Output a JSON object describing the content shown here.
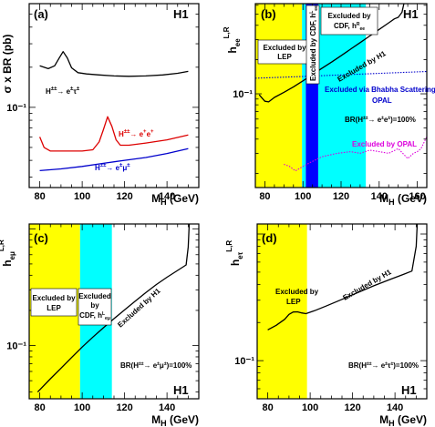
{
  "chart_data": [
    {
      "id": "a",
      "type": "line",
      "panel_label": "(a)",
      "experiment_label": "H1",
      "ylabel": "σ x BR (pb)",
      "xlabel": "M_H (GeV)",
      "xlim": [
        75,
        155
      ],
      "ylim": [
        0.025,
        0.6
      ],
      "yscale": "log",
      "xticks": [
        80,
        100,
        120,
        140
      ],
      "ytick_labels": [
        {
          "value": 0.1,
          "label": "10⁻¹"
        }
      ],
      "series": [
        {
          "name": "H±± → e±τ±",
          "color": "#000000",
          "x": [
            80,
            84,
            87,
            89,
            91,
            93,
            95,
            98,
            102,
            108,
            115,
            122,
            130,
            138,
            145,
            150
          ],
          "y": [
            0.205,
            0.195,
            0.205,
            0.232,
            0.262,
            0.235,
            0.198,
            0.182,
            0.178,
            0.175,
            0.172,
            0.171,
            0.172,
            0.175,
            0.18,
            0.186
          ]
        },
        {
          "name": "H±± → e±e±",
          "color": "#dd0000",
          "x": [
            80,
            82,
            85,
            90,
            95,
            100,
            105,
            108,
            110,
            112,
            114,
            116,
            118,
            122,
            130,
            140,
            150
          ],
          "y": [
            0.06,
            0.05,
            0.047,
            0.047,
            0.047,
            0.047,
            0.048,
            0.055,
            0.068,
            0.085,
            0.072,
            0.057,
            0.052,
            0.052,
            0.054,
            0.057,
            0.062
          ]
        },
        {
          "name": "H±± → e±μ±",
          "color": "#0000cc",
          "x": [
            80,
            90,
            100,
            110,
            120,
            130,
            140,
            150
          ],
          "y": [
            0.0335,
            0.0345,
            0.036,
            0.038,
            0.04,
            0.042,
            0.045,
            0.049
          ]
        }
      ]
    },
    {
      "id": "b",
      "type": "line",
      "panel_label": "(b)",
      "experiment_label": "H1",
      "ylabel": "h_ee^L,R",
      "xlabel": "M_H (GeV)",
      "xlim": [
        75,
        165
      ],
      "ylim": [
        0.015,
        0.62
      ],
      "yscale": "log",
      "xticks": [
        80,
        100,
        120,
        140,
        160
      ],
      "ytick_labels": [
        {
          "value": 0.1,
          "label": "10⁻¹"
        }
      ],
      "bands": [
        {
          "x0": 75,
          "x1": 99.5,
          "color": "#ffff00",
          "label": "Excluded by LEP"
        },
        {
          "x0": 99.5,
          "x1": 101.5,
          "color": "#00ffff"
        },
        {
          "x0": 101.5,
          "x1": 108,
          "color": "#0000ff",
          "label": "Excluded by CDF, h^L_ee"
        },
        {
          "x0": 108,
          "x1": 133,
          "color": "#00ffff",
          "label": "Excluded by CDF, h^R_ee"
        }
      ],
      "series": [
        {
          "name": "Excluded by H1",
          "color": "#000000",
          "x": [
            77,
            80,
            82,
            85,
            90,
            95,
            100,
            105,
            110,
            115,
            120,
            125,
            130,
            135,
            140,
            145,
            148,
            150,
            152,
            153
          ],
          "y": [
            0.098,
            0.086,
            0.085,
            0.093,
            0.103,
            0.115,
            0.13,
            0.148,
            0.168,
            0.19,
            0.216,
            0.247,
            0.282,
            0.322,
            0.368,
            0.42,
            0.456,
            0.47,
            0.52,
            0.62
          ]
        },
        {
          "name": "Excluded via Bhabha Scattering",
          "color": "#0000cc",
          "style": "dotted",
          "x": [
            75,
            100,
            130,
            165
          ],
          "y": [
            0.137,
            0.142,
            0.149,
            0.157
          ]
        },
        {
          "name": "Excluded by OPAL",
          "color": "#dd00dd",
          "style": "dotted",
          "x": [
            90,
            93,
            96,
            100,
            104,
            110,
            118,
            125,
            130,
            135,
            140,
            145,
            150,
            155,
            158,
            160,
            162,
            165
          ],
          "y": [
            0.024,
            0.023,
            0.021,
            0.023,
            0.025,
            0.028,
            0.03,
            0.031,
            0.03,
            0.032,
            0.031,
            0.03,
            0.033,
            0.027,
            0.03,
            0.031,
            0.033,
            0.042
          ]
        }
      ],
      "annotations": [
        {
          "text": "Excluded by",
          "text2": "LEP"
        },
        {
          "text": "Excluded by CDF, h^L_ee"
        },
        {
          "text": "Excluded by",
          "text2": "CDF, h^R_ee"
        },
        {
          "text": "Excluded by H1"
        },
        {
          "text": "Excluded via Bhabha Scattering"
        },
        {
          "text": "OPAL"
        },
        {
          "text": "BR(H±± → e±e±)=100%"
        },
        {
          "text": "Excluded by OPAL"
        }
      ]
    },
    {
      "id": "c",
      "type": "line",
      "panel_label": "(c)",
      "experiment_label": "H1",
      "ylabel": "h_eμ^L,R",
      "xlabel": "M_H (GeV)",
      "xlim": [
        75,
        155
      ],
      "ylim": [
        0.035,
        1.1
      ],
      "yscale": "log",
      "xticks": [
        80,
        100,
        120,
        140
      ],
      "ytick_labels": [
        {
          "value": 0.1,
          "label": "10⁻¹"
        }
      ],
      "bands": [
        {
          "x0": 75,
          "x1": 99,
          "color": "#ffff00",
          "label": "Excluded by LEP"
        },
        {
          "x0": 99,
          "x1": 114,
          "color": "#00ffff",
          "label": "Excluded by CDF, h^L_eμ"
        }
      ],
      "series": [
        {
          "name": "Excluded by H1",
          "color": "#000000",
          "x": [
            79,
            85,
            90,
            95,
            100,
            105,
            110,
            115,
            120,
            125,
            130,
            135,
            140,
            145,
            149,
            150,
            150.5
          ],
          "y": [
            0.04,
            0.052,
            0.064,
            0.079,
            0.097,
            0.118,
            0.142,
            0.17,
            0.202,
            0.24,
            0.284,
            0.333,
            0.385,
            0.44,
            0.49,
            0.7,
            1.1
          ]
        }
      ],
      "annotations": [
        {
          "text": "Excluded by",
          "text2": "LEP"
        },
        {
          "text": "Excluded",
          "text2": "by",
          "text3": "CDF, h^L_eμ"
        },
        {
          "text": "Excluded by H1"
        },
        {
          "text": "BR(H±± → e±μ±)=100%"
        }
      ]
    },
    {
      "id": "d",
      "type": "line",
      "panel_label": "(d)",
      "experiment_label": "H1",
      "ylabel": "h_eτ^L,R",
      "xlabel": "M_H (GeV)",
      "xlim": [
        75,
        155
      ],
      "ylim": [
        0.05,
        1.2
      ],
      "yscale": "log",
      "xticks": [
        80,
        100,
        120,
        140
      ],
      "ytick_labels": [
        {
          "value": 0.1,
          "label": "10⁻¹"
        }
      ],
      "bands": [
        {
          "x0": 75,
          "x1": 98.5,
          "color": "#ffff00",
          "label": "Excluded by LEP"
        }
      ],
      "series": [
        {
          "name": "Excluded by H1",
          "color": "#000000",
          "x": [
            80,
            84,
            88,
            90,
            92,
            94,
            96,
            98,
            102,
            108,
            115,
            122,
            130,
            138,
            144,
            148,
            150,
            150.5
          ],
          "y": [
            0.175,
            0.19,
            0.212,
            0.232,
            0.242,
            0.243,
            0.238,
            0.235,
            0.248,
            0.272,
            0.305,
            0.342,
            0.39,
            0.44,
            0.48,
            0.51,
            0.8,
            1.2
          ]
        }
      ],
      "annotations": [
        {
          "text": "Excluded by",
          "text2": "LEP"
        },
        {
          "text": "Excluded by H1"
        },
        {
          "text": "BR(H±± → e±τ±)=100%"
        }
      ]
    }
  ]
}
